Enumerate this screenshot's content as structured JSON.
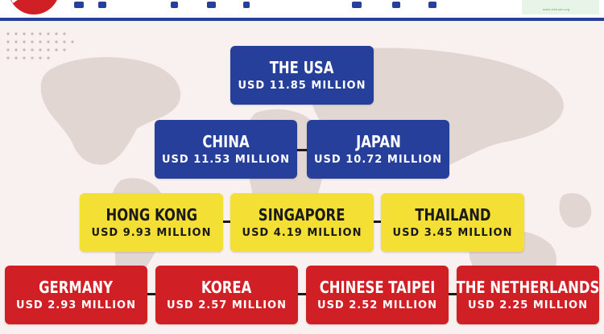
{
  "colors": {
    "background": "#f9f1ef",
    "tier1": "#253f9a",
    "tier2": "#253f9a",
    "tier3": "#f4df34",
    "tier4": "#d11f26",
    "rule": "#253f9a",
    "connector": "#1a1a1a"
  },
  "header": {
    "logo_text": "www.vietnam.org"
  },
  "tiers": [
    {
      "color": "blue",
      "items": [
        {
          "name": "THE USA",
          "value": "USD 11.85 MILLION"
        }
      ]
    },
    {
      "color": "blue",
      "items": [
        {
          "name": "CHINA",
          "value": "USD 11.53 MILLION"
        },
        {
          "name": "JAPAN",
          "value": "USD 10.72 MILLION"
        }
      ]
    },
    {
      "color": "yellow",
      "items": [
        {
          "name": "HONG KONG",
          "value": "USD 9.93 MILLION"
        },
        {
          "name": "SINGAPORE",
          "value": "USD 4.19 MILLION"
        },
        {
          "name": "THAILAND",
          "value": "USD 3.45 MILLION"
        }
      ]
    },
    {
      "color": "red",
      "items": [
        {
          "name": "GERMANY",
          "value": "USD 2.93 MILLION"
        },
        {
          "name": "KOREA",
          "value": "USD 2.57 MILLION"
        },
        {
          "name": "CHINESE TAIPEI",
          "value": "USD 2.52 MILLION"
        },
        {
          "name": "THE NETHERLANDS",
          "value": "USD 2.25 MILLION"
        }
      ]
    }
  ]
}
